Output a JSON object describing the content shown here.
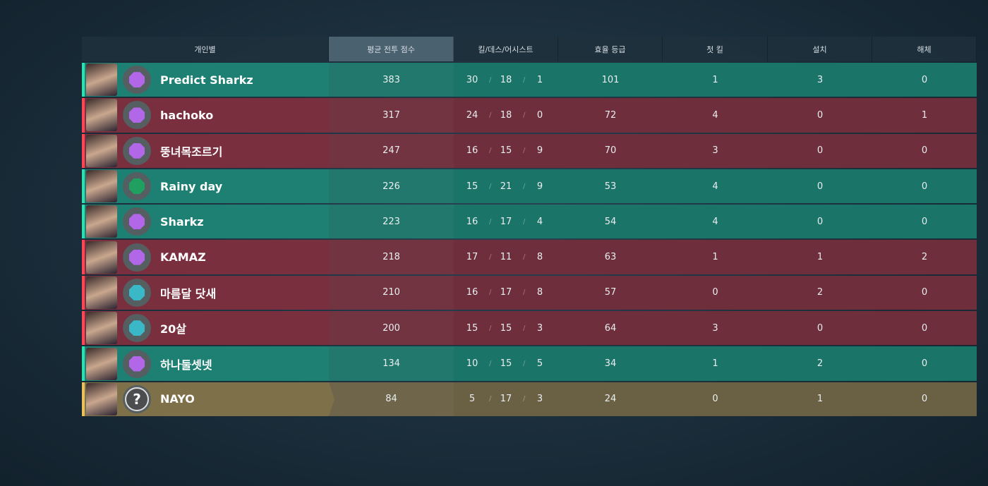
{
  "headers": [
    "개인별",
    "평균 전투 점수",
    "킬/데스/어시스트",
    "효율 등급",
    "첫 킬",
    "설치",
    "해체"
  ],
  "players": [
    {
      "name": "Predict Sharkz",
      "team": "g",
      "rank": "#b267e8",
      "acs": "383",
      "k": "30",
      "d": "18",
      "a": "1",
      "eff": "101",
      "fk": "1",
      "plant": "3",
      "defuse": "0"
    },
    {
      "name": "hachoko",
      "team": "r",
      "rank": "#b267e8",
      "acs": "317",
      "k": "24",
      "d": "18",
      "a": "0",
      "eff": "72",
      "fk": "4",
      "plant": "0",
      "defuse": "1"
    },
    {
      "name": "뚱녀목조르기",
      "team": "r",
      "rank": "#b267e8",
      "acs": "247",
      "k": "16",
      "d": "15",
      "a": "9",
      "eff": "70",
      "fk": "3",
      "plant": "0",
      "defuse": "0"
    },
    {
      "name": "Rainy day",
      "team": "g",
      "rank": "#1fa060",
      "acs": "226",
      "k": "15",
      "d": "21",
      "a": "9",
      "eff": "53",
      "fk": "4",
      "plant": "0",
      "defuse": "0"
    },
    {
      "name": "Sharkz",
      "team": "g",
      "rank": "#b267e8",
      "acs": "223",
      "k": "16",
      "d": "17",
      "a": "4",
      "eff": "54",
      "fk": "4",
      "plant": "0",
      "defuse": "0"
    },
    {
      "name": "KAMAZ",
      "team": "r",
      "rank": "#b267e8",
      "acs": "218",
      "k": "17",
      "d": "11",
      "a": "8",
      "eff": "63",
      "fk": "1",
      "plant": "1",
      "defuse": "2"
    },
    {
      "name": "마름달 닷새",
      "team": "r",
      "rank": "#3bb8c8",
      "acs": "210",
      "k": "16",
      "d": "17",
      "a": "8",
      "eff": "57",
      "fk": "0",
      "plant": "2",
      "defuse": "0"
    },
    {
      "name": "20살",
      "team": "r",
      "rank": "#3bb8c8",
      "acs": "200",
      "k": "15",
      "d": "15",
      "a": "3",
      "eff": "64",
      "fk": "3",
      "plant": "0",
      "defuse": "0"
    },
    {
      "name": "하나둘셋넷",
      "team": "g",
      "rank": "#b267e8",
      "acs": "134",
      "k": "10",
      "d": "15",
      "a": "5",
      "eff": "34",
      "fk": "1",
      "plant": "2",
      "defuse": "0"
    },
    {
      "name": "NAYO",
      "team": "y",
      "rank": "unranked",
      "unranked_glyph": "?",
      "acs": "84",
      "k": "5",
      "d": "17",
      "a": "3",
      "eff": "24",
      "fk": "0",
      "plant": "1",
      "defuse": "0"
    }
  ],
  "separator": "/"
}
